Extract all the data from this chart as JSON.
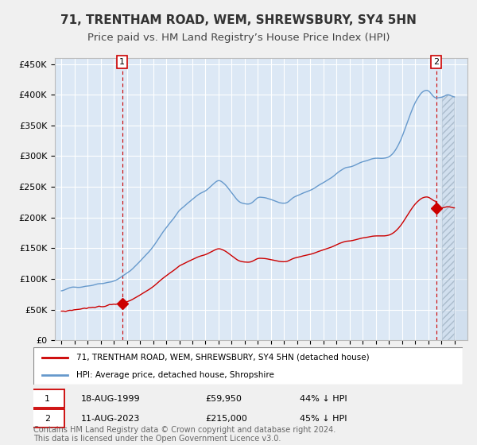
{
  "title": "71, TRENTHAM ROAD, WEM, SHREWSBURY, SY4 5HN",
  "subtitle": "Price paid vs. HM Land Registry’s House Price Index (HPI)",
  "title_fontsize": 11,
  "subtitle_fontsize": 9.5,
  "ylabel_ticks": [
    "£0",
    "£50K",
    "£100K",
    "£150K",
    "£200K",
    "£250K",
    "£300K",
    "£350K",
    "£400K",
    "£450K"
  ],
  "ytick_values": [
    0,
    50000,
    100000,
    150000,
    200000,
    250000,
    300000,
    350000,
    400000,
    450000
  ],
  "xlim": [
    1994.5,
    2026.0
  ],
  "ylim": [
    0,
    460000
  ],
  "plot_bg_color": "#dce8f5",
  "fig_bg_color": "#f0f0f0",
  "grid_color": "#ffffff",
  "sale1_x": 1999.63,
  "sale1_y": 59950,
  "sale2_x": 2023.61,
  "sale2_y": 215000,
  "red_line_color": "#cc0000",
  "blue_line_color": "#6699cc",
  "legend_label1": "71, TRENTHAM ROAD, WEM, SHREWSBURY, SY4 5HN (detached house)",
  "legend_label2": "HPI: Average price, detached house, Shropshire",
  "sale1_date": "18-AUG-1999",
  "sale1_price": "£59,950",
  "sale1_hpi": "44% ↓ HPI",
  "sale2_date": "11-AUG-2023",
  "sale2_price": "£215,000",
  "sale2_hpi": "45% ↓ HPI",
  "footer": "Contains HM Land Registry data © Crown copyright and database right 2024.\nThis data is licensed under the Open Government Licence v3.0.",
  "footer_fontsize": 7.0
}
